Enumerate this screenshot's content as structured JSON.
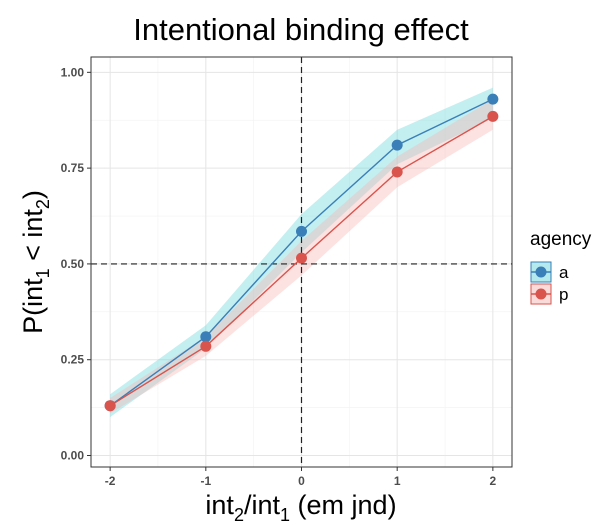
{
  "chart_data": {
    "type": "line",
    "title": "Intentional binding effect",
    "xlabel": {
      "base1": "int",
      "sub1": "2",
      "sep": "/",
      "base2": "int",
      "sub2": "1",
      "rest": " (em jnd)"
    },
    "ylabel": {
      "pre": "P(int",
      "sub1": "1",
      "mid": " < int",
      "sub2": "2",
      "post": ")"
    },
    "x": [
      -2,
      -1,
      0,
      1,
      2
    ],
    "x_tick_labels": [
      "-2",
      "-1",
      "0",
      "1",
      "2"
    ],
    "y_tick_labels": [
      "0.00",
      "0.25",
      "0.50",
      "0.75",
      "1.00"
    ],
    "y_ticks": [
      0,
      0.25,
      0.5,
      0.75,
      1.0
    ],
    "xlim": [
      -2.2,
      2.2
    ],
    "ylim": [
      -0.03,
      1.04
    ],
    "grid": true,
    "reference_lines": {
      "x": 0,
      "y": 0.5
    },
    "legend": {
      "title": "agency",
      "position": "right"
    },
    "series": [
      {
        "name": "a",
        "color": "#3a7fb8",
        "band_color": "#6ad6dc",
        "values": [
          0.13,
          0.31,
          0.585,
          0.81,
          0.93
        ],
        "lower": [
          0.1,
          0.28,
          0.53,
          0.76,
          0.88
        ],
        "upper": [
          0.16,
          0.34,
          0.63,
          0.85,
          0.96
        ]
      },
      {
        "name": "p",
        "color": "#d9544d",
        "band_color": "#f7b7b5",
        "values": [
          0.13,
          0.285,
          0.515,
          0.74,
          0.885
        ],
        "lower": [
          0.11,
          0.26,
          0.47,
          0.7,
          0.85
        ],
        "upper": [
          0.15,
          0.31,
          0.56,
          0.78,
          0.93
        ]
      }
    ]
  }
}
